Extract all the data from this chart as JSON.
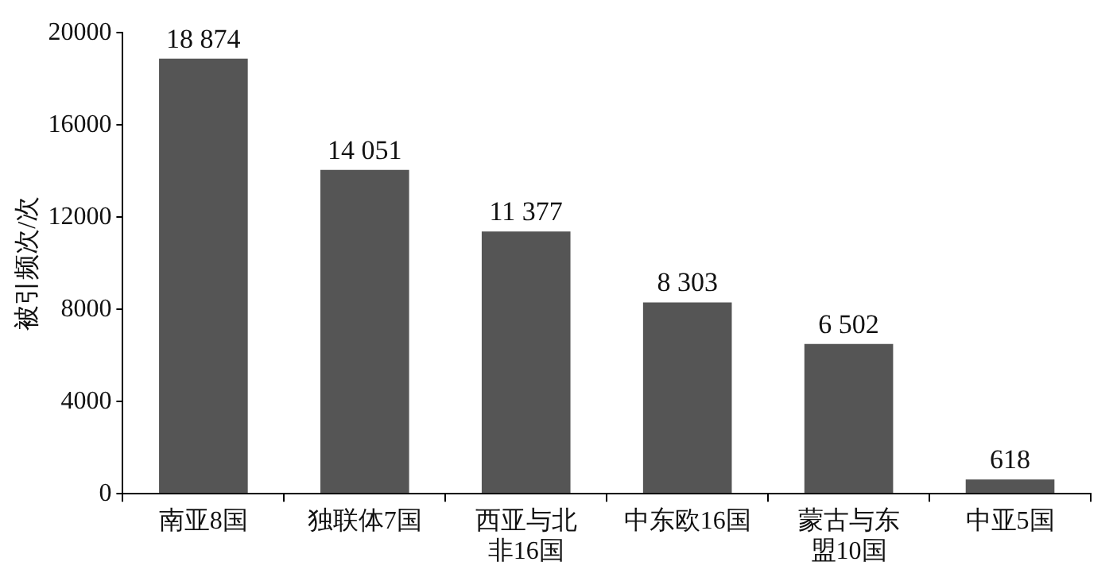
{
  "chart_data": {
    "type": "bar",
    "ylabel": "被引频次/次",
    "categories": [
      "南亚8国",
      "独联体7国",
      "西亚与北非16国",
      "中东欧16国",
      "蒙古与东盟10国",
      "中亚5国"
    ],
    "values": [
      18874,
      14051,
      11377,
      8303,
      6502,
      618
    ],
    "value_labels": [
      "18 874",
      "14 051",
      "11 377",
      "8 303",
      "6 502",
      "618"
    ],
    "color": "#555555",
    "ylim": [
      0,
      20000
    ],
    "yticks": [
      0,
      4000,
      8000,
      12000,
      16000,
      20000
    ],
    "grid": false,
    "legend": false
  }
}
